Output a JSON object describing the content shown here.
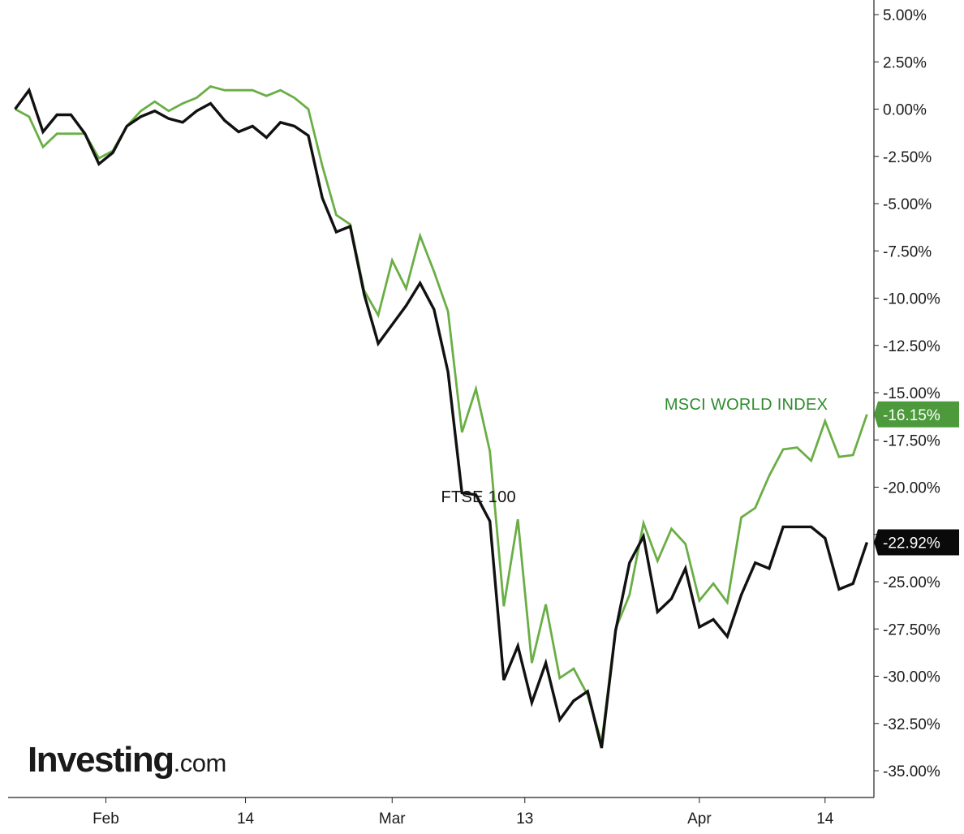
{
  "chart_data": {
    "type": "line",
    "x_ticks": [
      {
        "label": "Feb",
        "x": 6.5
      },
      {
        "label": "14",
        "x": 16.5
      },
      {
        "label": "Mar",
        "x": 27
      },
      {
        "label": "13",
        "x": 36.5
      },
      {
        "label": "Apr",
        "x": 49
      },
      {
        "label": "14",
        "x": 58
      }
    ],
    "xlim": [
      -0.5,
      61.5
    ],
    "ylim": [
      -36,
      5.5
    ],
    "y_ticks": [
      5,
      2.5,
      0,
      -2.5,
      -5,
      -7.5,
      -10,
      -12.5,
      -15,
      -17.5,
      -20,
      -22.5,
      -25,
      -27.5,
      -30,
      -32.5,
      -35
    ],
    "y_tick_labels": [
      "5.00%",
      "2.50%",
      "0.00%",
      "-2.50%",
      "-5.00%",
      "-7.50%",
      "-10.00%",
      "-12.50%",
      "-15.00%",
      "-17.50%",
      "-20.00%",
      "-22.50%",
      "-25.00%",
      "-27.50%",
      "-30.00%",
      "-32.50%",
      "-35.00%"
    ],
    "series": [
      {
        "name": "MSCI WORLD INDEX",
        "color": "#6aae45",
        "label_color": "#2e8b2e",
        "last_value_label": "-16.15%",
        "x": [
          0,
          1,
          2,
          3,
          4,
          5,
          6,
          7,
          8,
          9,
          10,
          11,
          12,
          13,
          14,
          15,
          16,
          17,
          18,
          19,
          20,
          21,
          22,
          23,
          24,
          25,
          26,
          27,
          28,
          29,
          30,
          31,
          32,
          33,
          34,
          35,
          36,
          37,
          38,
          39,
          40,
          41,
          42,
          43,
          44,
          45,
          46,
          47,
          48,
          49,
          50,
          51,
          52,
          53,
          54,
          55,
          56,
          57,
          58,
          59,
          60,
          61
        ],
        "values": [
          0.0,
          -0.4,
          -2.0,
          -1.3,
          -1.3,
          -1.3,
          -2.6,
          -2.2,
          -0.9,
          -0.1,
          0.4,
          -0.1,
          0.3,
          0.6,
          1.2,
          1.0,
          1.0,
          1.0,
          0.7,
          1.0,
          0.6,
          0.0,
          -3.0,
          -5.6,
          -6.1,
          -9.6,
          -10.9,
          -8.0,
          -9.5,
          -6.7,
          -8.6,
          -10.7,
          -17.1,
          -14.8,
          -18.1,
          -26.3,
          -21.7,
          -29.3,
          -26.2,
          -30.1,
          -29.6,
          -31.0,
          -33.5,
          -27.5,
          -25.7,
          -21.9,
          -23.9,
          -22.2,
          -23.0,
          -26.0,
          -25.1,
          -26.1,
          -21.6,
          -21.1,
          -19.4,
          -18.0,
          -17.9,
          -18.6,
          -16.5,
          -18.4,
          -18.3,
          -16.15
        ]
      },
      {
        "name": "FTSE 100",
        "color": "#111111",
        "label_color": "#111111",
        "last_value_label": "-22.92%",
        "x": [
          0,
          1,
          2,
          3,
          4,
          5,
          6,
          7,
          8,
          9,
          10,
          11,
          12,
          13,
          14,
          15,
          16,
          17,
          18,
          19,
          20,
          21,
          22,
          23,
          24,
          25,
          26,
          27,
          28,
          29,
          30,
          31,
          32,
          33,
          34,
          35,
          36,
          37,
          38,
          39,
          40,
          41,
          42,
          43,
          44,
          45,
          46,
          47,
          48,
          49,
          50,
          51,
          52,
          53,
          54,
          55,
          56,
          57,
          58,
          59,
          60,
          61
        ],
        "values": [
          0.0,
          1.0,
          -1.2,
          -0.3,
          -0.3,
          -1.3,
          -2.9,
          -2.3,
          -0.9,
          -0.4,
          -0.1,
          -0.5,
          -0.7,
          -0.1,
          0.3,
          -0.6,
          -1.2,
          -0.9,
          -1.5,
          -0.7,
          -0.9,
          -1.4,
          -4.7,
          -6.5,
          -6.2,
          -9.8,
          -12.4,
          -11.4,
          -10.4,
          -9.2,
          -10.6,
          -13.9,
          -20.3,
          -20.4,
          -21.8,
          -30.2,
          -28.4,
          -31.4,
          -29.3,
          -32.3,
          -31.3,
          -30.8,
          -33.8,
          -27.6,
          -24.0,
          -22.6,
          -26.6,
          -25.9,
          -24.3,
          -27.4,
          -27.0,
          -27.9,
          -25.7,
          -24.0,
          -24.3,
          -22.1,
          -22.1,
          -22.1,
          -22.7,
          -25.4,
          -25.1,
          -22.92
        ]
      }
    ],
    "annotations": [
      {
        "text": "MSCI WORLD INDEX",
        "series": 0,
        "x": 46.5,
        "y": -15.9
      },
      {
        "text": "FTSE 100",
        "series": 1,
        "x": 30.5,
        "y": -20.8
      }
    ]
  },
  "watermark": {
    "main": "Investing",
    "tld": ".com"
  }
}
